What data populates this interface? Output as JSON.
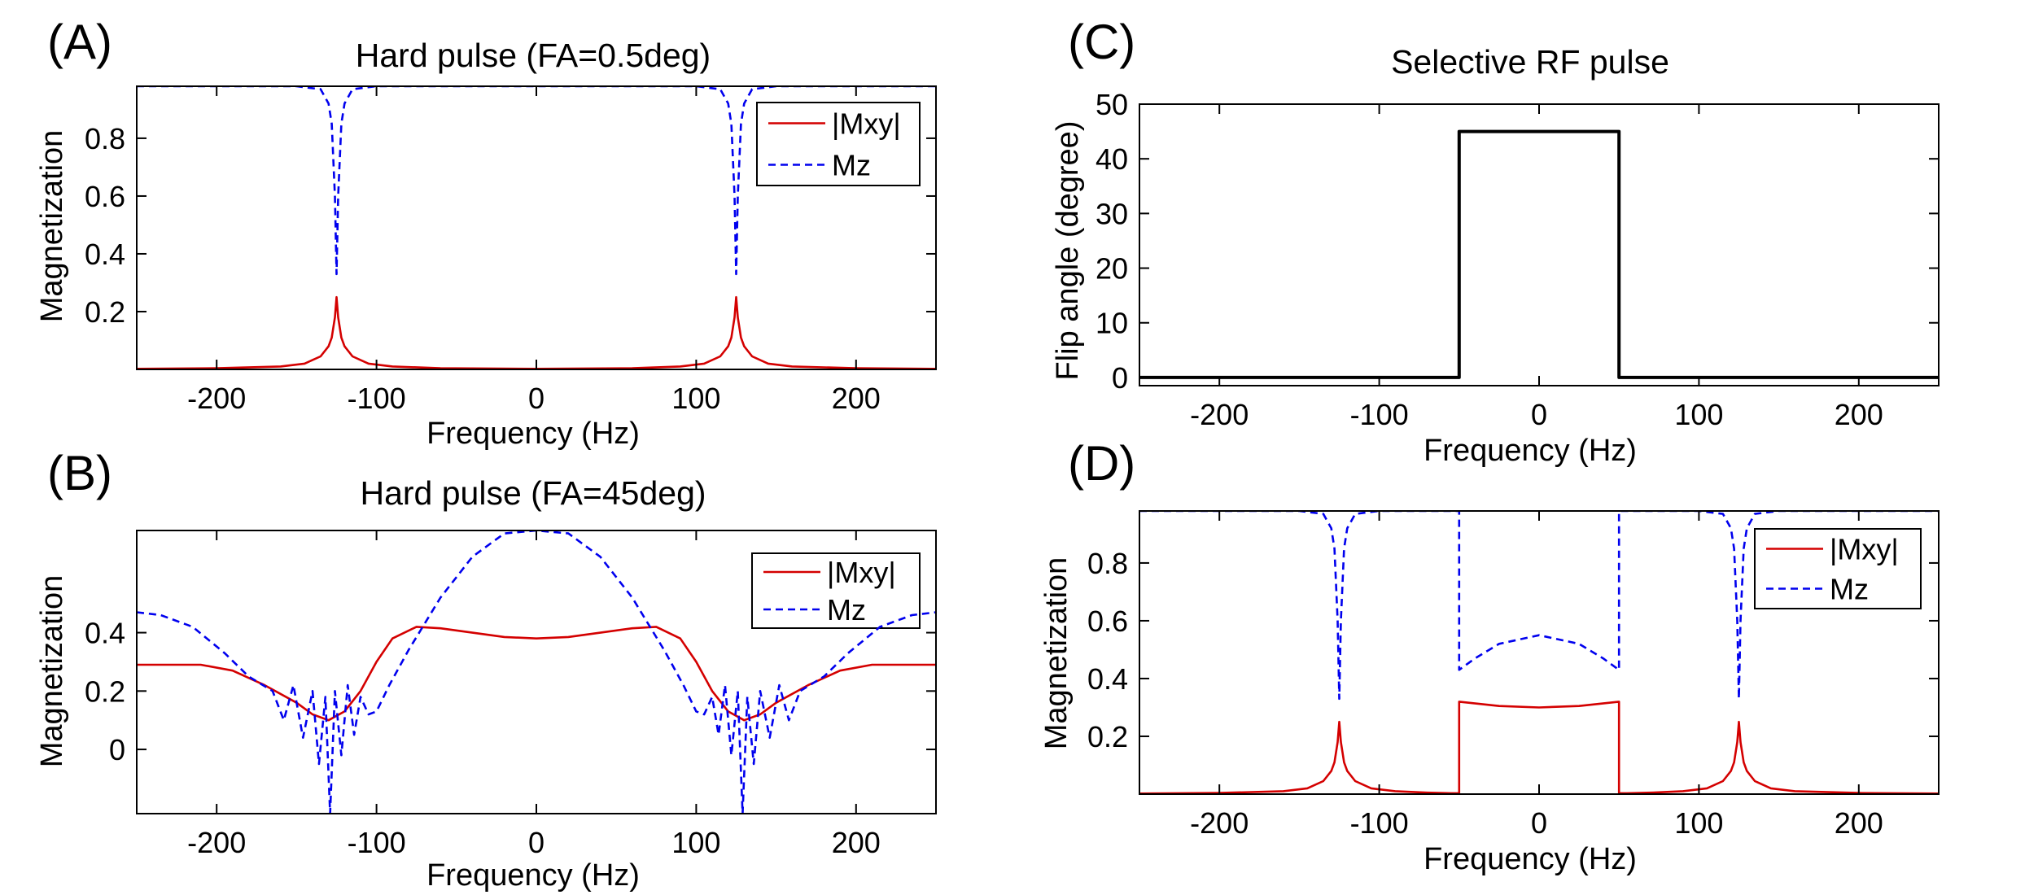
{
  "colors": {
    "mxy": "#d40000",
    "mz": "#0000ee",
    "rf": "#000000",
    "axis": "#000000"
  },
  "chart_data": [
    {
      "id": "A",
      "panel_label": "(A)",
      "type": "line",
      "title": "Hard pulse (FA=0.5deg)",
      "xlabel": "Frequency (Hz)",
      "ylabel": "Magnetization",
      "xlim": [
        -250,
        250
      ],
      "ylim": [
        0,
        0.98
      ],
      "xticks": [
        -200,
        -100,
        0,
        100,
        200
      ],
      "xtick_labels": [
        "-200",
        "-100",
        "0",
        "100",
        "200"
      ],
      "yticks": [
        0.2,
        0.4,
        0.6,
        0.8
      ],
      "ytick_labels": [
        "0.2",
        "0.4",
        "0.6",
        "0.8"
      ],
      "legend": "top-right",
      "series": [
        {
          "name": "|Mxy|",
          "style": "solid",
          "color": "#d40000",
          "x": [
            -250,
            -200,
            -160,
            -145,
            -135,
            -130,
            -128,
            -126,
            -125,
            -124,
            -122,
            -120,
            -115,
            -105,
            -90,
            -60,
            0,
            60,
            90,
            105,
            115,
            120,
            122,
            124,
            125,
            126,
            128,
            130,
            135,
            145,
            160,
            200,
            250
          ],
          "y": [
            0.002,
            0.004,
            0.01,
            0.02,
            0.045,
            0.08,
            0.11,
            0.18,
            0.25,
            0.18,
            0.11,
            0.08,
            0.045,
            0.02,
            0.01,
            0.004,
            0.002,
            0.004,
            0.01,
            0.02,
            0.045,
            0.08,
            0.11,
            0.18,
            0.25,
            0.18,
            0.11,
            0.08,
            0.045,
            0.02,
            0.01,
            0.004,
            0.002
          ]
        },
        {
          "name": "Mz",
          "style": "dashed",
          "color": "#0000ee",
          "x": [
            -250,
            -150,
            -135,
            -130,
            -128,
            -126,
            -125,
            -124,
            -122,
            -120,
            -115,
            -100,
            0,
            100,
            115,
            120,
            122,
            124,
            125,
            126,
            128,
            130,
            135,
            150,
            250
          ],
          "y": [
            0.98,
            0.98,
            0.97,
            0.92,
            0.85,
            0.6,
            0.33,
            0.6,
            0.85,
            0.92,
            0.97,
            0.98,
            0.98,
            0.98,
            0.97,
            0.92,
            0.85,
            0.6,
            0.33,
            0.6,
            0.85,
            0.92,
            0.97,
            0.98,
            0.98
          ]
        }
      ]
    },
    {
      "id": "B",
      "panel_label": "(B)",
      "type": "line",
      "title": "Hard pulse (FA=45deg)",
      "xlabel": "Frequency (Hz)",
      "ylabel": "Magnetization",
      "xlim": [
        -250,
        250
      ],
      "ylim": [
        -0.22,
        0.75
      ],
      "xticks": [
        -200,
        -100,
        0,
        100,
        200
      ],
      "xtick_labels": [
        "-200",
        "-100",
        "0",
        "100",
        "200"
      ],
      "yticks": [
        0,
        0.2,
        0.4
      ],
      "ytick_labels": [
        "0",
        "0.2",
        "0.4"
      ],
      "legend": "top-right",
      "series": [
        {
          "name": "|Mxy|",
          "style": "solid",
          "color": "#d40000",
          "x": [
            -250,
            -210,
            -190,
            -170,
            -150,
            -140,
            -130,
            -120,
            -110,
            -100,
            -90,
            -75,
            -60,
            -40,
            -20,
            0,
            20,
            40,
            60,
            75,
            90,
            100,
            110,
            120,
            130,
            140,
            150,
            170,
            190,
            210,
            250
          ],
          "y": [
            0.29,
            0.29,
            0.27,
            0.22,
            0.16,
            0.12,
            0.1,
            0.13,
            0.2,
            0.3,
            0.38,
            0.42,
            0.415,
            0.4,
            0.385,
            0.38,
            0.385,
            0.4,
            0.415,
            0.42,
            0.38,
            0.3,
            0.2,
            0.13,
            0.1,
            0.12,
            0.16,
            0.22,
            0.27,
            0.29,
            0.29
          ]
        },
        {
          "name": "Mz",
          "style": "dashed",
          "color": "#0000ee",
          "x": [
            -250,
            -235,
            -215,
            -195,
            -180,
            -165,
            -158,
            -152,
            -146,
            -140,
            -136,
            -132,
            -129,
            -126,
            -122,
            -118,
            -114,
            -110,
            -105,
            -100,
            -92,
            -80,
            -60,
            -40,
            -20,
            0,
            20,
            40,
            60,
            80,
            92,
            100,
            105,
            110,
            114,
            118,
            122,
            126,
            129,
            132,
            136,
            140,
            146,
            152,
            158,
            165,
            180,
            195,
            215,
            235,
            250
          ],
          "y": [
            0.47,
            0.46,
            0.42,
            0.33,
            0.25,
            0.2,
            0.1,
            0.22,
            0.04,
            0.2,
            -0.05,
            0.18,
            -0.22,
            0.2,
            -0.02,
            0.22,
            0.05,
            0.18,
            0.12,
            0.13,
            0.22,
            0.34,
            0.52,
            0.66,
            0.74,
            0.75,
            0.74,
            0.66,
            0.52,
            0.34,
            0.22,
            0.13,
            0.12,
            0.18,
            0.05,
            0.22,
            -0.02,
            0.2,
            -0.22,
            0.18,
            -0.05,
            0.2,
            0.04,
            0.22,
            0.1,
            0.2,
            0.25,
            0.33,
            0.42,
            0.46,
            0.47
          ]
        }
      ]
    },
    {
      "id": "C",
      "panel_label": "(C)",
      "type": "line",
      "title": "Selective RF pulse",
      "xlabel": "Frequency (Hz)",
      "ylabel": "Flip angle (degree)",
      "xlim": [
        -250,
        250
      ],
      "ylim": [
        -1.5,
        50
      ],
      "xticks": [
        -200,
        -100,
        0,
        100,
        200
      ],
      "xtick_labels": [
        "-200",
        "-100",
        "0",
        "100",
        "200"
      ],
      "yticks": [
        0,
        10,
        20,
        30,
        40,
        50
      ],
      "ytick_labels": [
        "0",
        "10",
        "20",
        "30",
        "40",
        "50"
      ],
      "legend": "none",
      "series": [
        {
          "name": "Flip angle",
          "style": "solid",
          "color": "#000000",
          "x": [
            -250,
            -50,
            -50,
            50,
            50,
            250
          ],
          "y": [
            0,
            0,
            45,
            45,
            0,
            0
          ]
        }
      ]
    },
    {
      "id": "D",
      "panel_label": "(D)",
      "type": "line",
      "title": "",
      "xlabel": "Frequency (Hz)",
      "ylabel": "Magnetization",
      "xlim": [
        -250,
        250
      ],
      "ylim": [
        0,
        0.98
      ],
      "xticks": [
        -200,
        -100,
        0,
        100,
        200
      ],
      "xtick_labels": [
        "-200",
        "-100",
        "0",
        "100",
        "200"
      ],
      "yticks": [
        0.2,
        0.4,
        0.6,
        0.8
      ],
      "ytick_labels": [
        "0.2",
        "0.4",
        "0.6",
        "0.8"
      ],
      "legend": "top-right",
      "series": [
        {
          "name": "|Mxy|",
          "style": "solid",
          "color": "#d40000",
          "x": [
            -250,
            -200,
            -160,
            -145,
            -135,
            -130,
            -128,
            -126,
            -125,
            -124,
            -122,
            -120,
            -115,
            -105,
            -90,
            -70,
            -55,
            -50,
            -50,
            -25,
            0,
            25,
            50,
            50,
            55,
            70,
            90,
            105,
            115,
            120,
            122,
            124,
            125,
            126,
            128,
            130,
            135,
            145,
            160,
            200,
            250
          ],
          "y": [
            0.002,
            0.004,
            0.01,
            0.02,
            0.045,
            0.08,
            0.11,
            0.18,
            0.25,
            0.18,
            0.11,
            0.08,
            0.045,
            0.02,
            0.01,
            0.005,
            0.003,
            0.003,
            0.32,
            0.305,
            0.3,
            0.305,
            0.32,
            0.003,
            0.003,
            0.005,
            0.01,
            0.02,
            0.045,
            0.08,
            0.11,
            0.18,
            0.25,
            0.18,
            0.11,
            0.08,
            0.045,
            0.02,
            0.01,
            0.004,
            0.002
          ]
        },
        {
          "name": "Mz",
          "style": "dashed",
          "color": "#0000ee",
          "x": [
            -250,
            -150,
            -135,
            -130,
            -128,
            -126,
            -125,
            -124,
            -122,
            -120,
            -115,
            -100,
            -55,
            -50,
            -50,
            -40,
            -25,
            0,
            25,
            40,
            50,
            50,
            55,
            100,
            115,
            120,
            122,
            124,
            125,
            126,
            128,
            130,
            135,
            150,
            250
          ],
          "y": [
            0.98,
            0.98,
            0.97,
            0.92,
            0.85,
            0.6,
            0.33,
            0.6,
            0.85,
            0.92,
            0.97,
            0.98,
            0.98,
            0.98,
            0.43,
            0.47,
            0.52,
            0.55,
            0.52,
            0.47,
            0.43,
            0.98,
            0.98,
            0.98,
            0.97,
            0.92,
            0.85,
            0.6,
            0.33,
            0.6,
            0.85,
            0.92,
            0.97,
            0.98,
            0.98
          ]
        }
      ]
    }
  ]
}
